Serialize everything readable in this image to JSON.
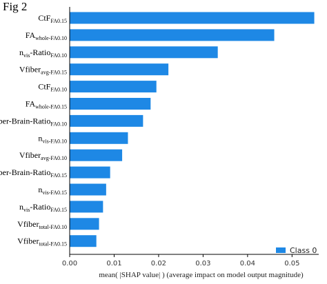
{
  "figure_label": "Fig 2",
  "chart_data": {
    "type": "bar",
    "orientation": "horizontal",
    "xlabel": "mean( |SHAP value| ) (average impact on model output magnitude)",
    "xlim": [
      0,
      0.056
    ],
    "xticks": [
      "0.00",
      "0.01",
      "0.02",
      "0.03",
      "0.04",
      "0.05"
    ],
    "legend": {
      "position": "bottom-right",
      "entries": [
        "Class 0"
      ]
    },
    "bar_color": "#1e88e5",
    "categories": [
      {
        "base": "CtF",
        "sub": "FA0.15"
      },
      {
        "base": "FA",
        "sub": "whole-FA0.10"
      },
      {
        "base": "n",
        "sub": "vis",
        "suffix": "-Ratio",
        "sub2": "FA0.10"
      },
      {
        "base": "Vfiber",
        "sub": "avg-FA0.15"
      },
      {
        "base": "CtF",
        "sub": "FA0.10"
      },
      {
        "base": "FA",
        "sub": "whole-FA0.15"
      },
      {
        "base": "Fiber-Brain-Ratio",
        "sub": "FA0.10"
      },
      {
        "base": "n",
        "sub": "vis-FA0.10"
      },
      {
        "base": "Vfiber",
        "sub": "avg-FA0.10"
      },
      {
        "base": "Fiber-Brain-Ratio",
        "sub": "FA0.15"
      },
      {
        "base": "n",
        "sub": "vis-FA0.15"
      },
      {
        "base": "n",
        "sub": "vis",
        "suffix": "-Ratio",
        "sub2": "FA0.15"
      },
      {
        "base": "Vfiber",
        "sub": "total-FA0.10"
      },
      {
        "base": "Vfiber",
        "sub": "total-FA0.15"
      }
    ],
    "series": [
      {
        "name": "Class 0",
        "values": [
          0.055,
          0.046,
          0.0333,
          0.0222,
          0.0195,
          0.0182,
          0.0165,
          0.0131,
          0.0118,
          0.0091,
          0.0082,
          0.0075,
          0.0066,
          0.006
        ]
      }
    ]
  }
}
